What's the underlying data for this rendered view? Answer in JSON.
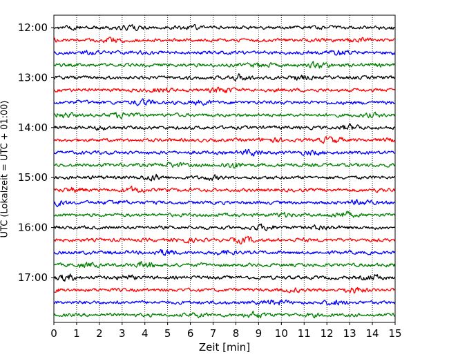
{
  "chart_data": {
    "type": "line",
    "xlabel": "Zeit  [min]",
    "ylabel": "UTC (Lokalzeit = UTC + 01:00)",
    "xlim": [
      0,
      15
    ],
    "x_ticks": [
      "0",
      "1",
      "2",
      "3",
      "4",
      "5",
      "6",
      "7",
      "8",
      "9",
      "10",
      "11",
      "12",
      "13",
      "14",
      "15"
    ],
    "y_tick_labels": [
      "12:00",
      "13:00",
      "14:00",
      "15:00",
      "16:00",
      "17:00"
    ],
    "trace_interval_minutes": 15,
    "first_trace_start": "12:00",
    "trace_count": 24,
    "trace_colors": [
      "#000000",
      "#ff0000",
      "#0000ff",
      "#008000"
    ],
    "grid": "vertical dotted at each minute",
    "series": [
      {
        "start": "12:00",
        "color": "#000000"
      },
      {
        "start": "12:15",
        "color": "#ff0000"
      },
      {
        "start": "12:30",
        "color": "#0000ff"
      },
      {
        "start": "12:45",
        "color": "#008000"
      },
      {
        "start": "13:00",
        "color": "#000000"
      },
      {
        "start": "13:15",
        "color": "#ff0000"
      },
      {
        "start": "13:30",
        "color": "#0000ff"
      },
      {
        "start": "13:45",
        "color": "#008000"
      },
      {
        "start": "14:00",
        "color": "#000000"
      },
      {
        "start": "14:15",
        "color": "#ff0000"
      },
      {
        "start": "14:30",
        "color": "#0000ff"
      },
      {
        "start": "14:45",
        "color": "#008000"
      },
      {
        "start": "15:00",
        "color": "#000000"
      },
      {
        "start": "15:15",
        "color": "#ff0000"
      },
      {
        "start": "15:30",
        "color": "#0000ff"
      },
      {
        "start": "15:45",
        "color": "#008000"
      },
      {
        "start": "16:00",
        "color": "#000000"
      },
      {
        "start": "16:15",
        "color": "#ff0000"
      },
      {
        "start": "16:30",
        "color": "#0000ff"
      },
      {
        "start": "16:45",
        "color": "#008000"
      },
      {
        "start": "17:00",
        "color": "#000000"
      },
      {
        "start": "17:15",
        "color": "#ff0000"
      },
      {
        "start": "17:30",
        "color": "#0000ff"
      },
      {
        "start": "17:45",
        "color": "#008000"
      }
    ]
  }
}
